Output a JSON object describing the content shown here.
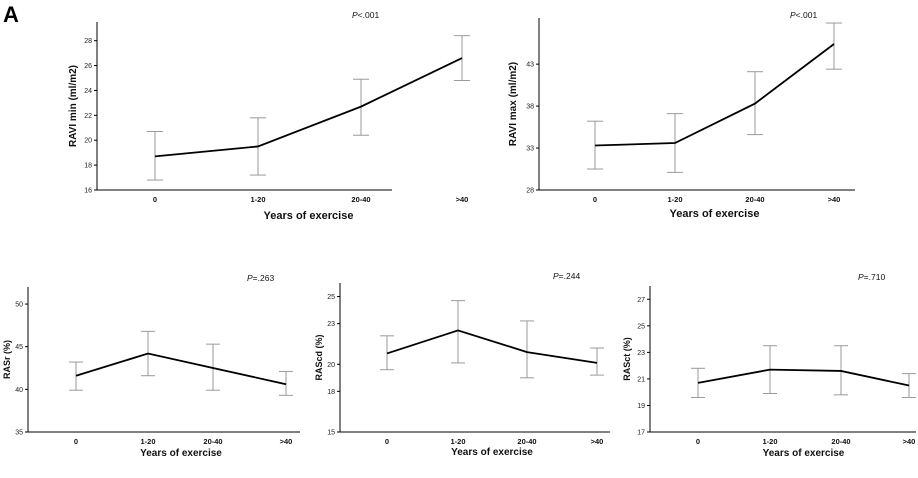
{
  "figure_label": "A",
  "chart_data": [
    {
      "type": "line",
      "ylabel": "RAVI min (ml/m2)",
      "xlabel": "Years of exercise",
      "annotation_prefix": "P",
      "annotation_value": "<.001",
      "categories": [
        "0",
        "1-20",
        "20-40",
        ">40"
      ],
      "values": [
        18.7,
        19.5,
        22.7,
        26.6
      ],
      "error_low": [
        16.8,
        17.2,
        20.4,
        24.8
      ],
      "error_high": [
        20.7,
        21.8,
        24.9,
        28.4
      ],
      "ylim": [
        16,
        29.5
      ],
      "yticks": [
        16,
        18,
        20,
        22,
        24,
        26,
        28
      ]
    },
    {
      "type": "line",
      "ylabel": "RAVI max (ml/m2)",
      "xlabel": "Years of exercise",
      "annotation_prefix": "P",
      "annotation_value": "<.001",
      "categories": [
        "0",
        "1-20",
        "20-40",
        ">40"
      ],
      "values": [
        33.3,
        33.6,
        38.3,
        45.4
      ],
      "error_low": [
        30.5,
        30.1,
        34.6,
        42.4
      ],
      "error_high": [
        36.2,
        37.1,
        42.1,
        47.9
      ],
      "ylim": [
        28,
        48.5
      ],
      "yticks": [
        28,
        33,
        38,
        43
      ]
    },
    {
      "type": "line",
      "ylabel": "RASr (%)",
      "xlabel": "Years of exercise",
      "annotation_prefix": "P",
      "annotation_value": "=.263",
      "categories": [
        "0",
        "1-20",
        "20-40",
        ">40"
      ],
      "values": [
        41.6,
        44.2,
        42.5,
        40.6
      ],
      "error_low": [
        39.9,
        41.6,
        39.9,
        39.3
      ],
      "error_high": [
        43.2,
        46.8,
        45.3,
        42.1
      ],
      "ylim": [
        35,
        52
      ],
      "yticks": [
        35,
        40,
        45,
        50
      ]
    },
    {
      "type": "line",
      "ylabel": "RAScd (%)",
      "xlabel": "Years of exercise",
      "annotation_prefix": "P",
      "annotation_value": "=.244",
      "categories": [
        "0",
        "1-20",
        "20-40",
        ">40"
      ],
      "values": [
        20.8,
        22.5,
        20.9,
        20.1
      ],
      "error_low": [
        19.6,
        20.1,
        19.0,
        19.2
      ],
      "error_high": [
        22.1,
        24.7,
        23.2,
        21.2
      ],
      "ylim": [
        15,
        26
      ],
      "yticks": [
        15,
        18,
        20,
        23,
        25
      ],
      "yticklabels": [
        "15",
        "18",
        "20",
        "23",
        "25"
      ]
    },
    {
      "type": "line",
      "ylabel": "RASct (%)",
      "xlabel": "Years of exercise",
      "annotation_prefix": "P",
      "annotation_value": "=.710",
      "categories": [
        "0",
        "1-20",
        "20-40",
        ">40"
      ],
      "values": [
        20.7,
        21.7,
        21.6,
        20.5
      ],
      "error_low": [
        19.6,
        19.9,
        19.8,
        19.6
      ],
      "error_high": [
        21.8,
        23.5,
        23.5,
        21.4
      ],
      "ylim": [
        17,
        28
      ],
      "yticks": [
        17,
        19,
        21,
        23,
        25,
        27
      ]
    }
  ]
}
